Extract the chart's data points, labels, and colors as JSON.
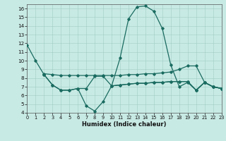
{
  "xlabel": "Humidex (Indice chaleur)",
  "bg_color": "#c8eae4",
  "grid_color": "#a0ccc5",
  "line_color": "#1a6b60",
  "xlim": [
    0,
    23
  ],
  "ylim": [
    4,
    16.5
  ],
  "yticks": [
    4,
    5,
    6,
    7,
    8,
    9,
    10,
    11,
    12,
    13,
    14,
    15,
    16
  ],
  "xticks": [
    0,
    1,
    2,
    3,
    4,
    5,
    6,
    7,
    8,
    9,
    10,
    11,
    12,
    13,
    14,
    15,
    16,
    17,
    18,
    19,
    20,
    21,
    22,
    23
  ],
  "line0": [
    11.8,
    10.0,
    8.4,
    7.2,
    6.6,
    6.6,
    6.8,
    4.8,
    4.2,
    5.3,
    7.1,
    10.3,
    14.8,
    16.2,
    16.3,
    15.7,
    13.7,
    9.5,
    7.0,
    7.5,
    6.6,
    7.5,
    7.0,
    6.8
  ],
  "line1": [
    null,
    null,
    8.4,
    7.2,
    6.6,
    6.6,
    6.8,
    6.8,
    8.2,
    8.2,
    7.1,
    7.2,
    7.3,
    7.4,
    7.4,
    7.5,
    7.5,
    7.6,
    7.6,
    7.6,
    6.6,
    7.5,
    7.0,
    6.8
  ],
  "line2": [
    null,
    null,
    8.5,
    8.4,
    8.3,
    8.3,
    8.3,
    8.3,
    8.3,
    8.3,
    8.3,
    8.3,
    8.4,
    8.4,
    8.5,
    8.5,
    8.6,
    8.7,
    9.0,
    9.4,
    9.4,
    7.5,
    7.0,
    6.8
  ],
  "line3": [
    null,
    null,
    null,
    null,
    null,
    null,
    null,
    null,
    null,
    null,
    7.1,
    7.2,
    7.3,
    7.4,
    7.4,
    7.5,
    7.5,
    7.6,
    7.6,
    7.6,
    6.6,
    7.5,
    7.0,
    6.8
  ]
}
